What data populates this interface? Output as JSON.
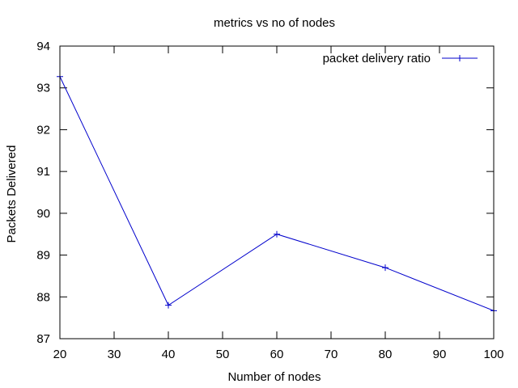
{
  "chart_data": {
    "type": "line",
    "title": "metrics vs no of nodes",
    "xlabel": "Number of nodes",
    "ylabel": "Packets Delivered",
    "xlim": [
      20,
      100
    ],
    "ylim": [
      87,
      94
    ],
    "xticks": [
      20,
      30,
      40,
      50,
      60,
      70,
      80,
      90,
      100
    ],
    "yticks": [
      87,
      88,
      89,
      90,
      91,
      92,
      93,
      94
    ],
    "legend_position": "top-right",
    "grid": false,
    "series": [
      {
        "name": "packet delivery ratio",
        "color": "#0000cc",
        "marker": "plus",
        "x": [
          20,
          40,
          60,
          80,
          100
        ],
        "y": [
          93.27,
          87.8,
          89.5,
          88.7,
          87.67
        ]
      }
    ]
  }
}
